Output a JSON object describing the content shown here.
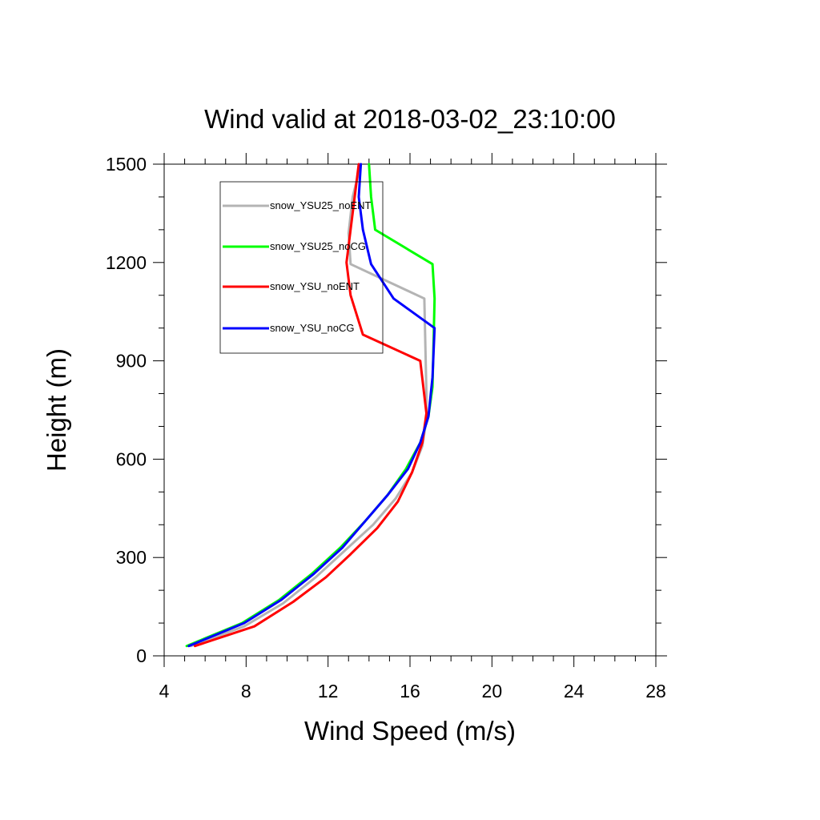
{
  "chart_data": {
    "type": "line",
    "title": "Wind valid at 2018-03-02_23:10:00",
    "xlabel": "Wind Speed (m/s)",
    "ylabel": "Height (m)",
    "xlim": [
      4,
      28
    ],
    "ylim": [
      0,
      1500
    ],
    "x_ticks": [
      "4",
      "8",
      "12",
      "16",
      "20",
      "24",
      "28"
    ],
    "y_ticks": [
      "0",
      "300",
      "600",
      "900",
      "1200",
      "1500"
    ],
    "legend_position": "top-left",
    "series": [
      {
        "name": "snow_YSU25_noENT",
        "color": "#b4b4b4",
        "x": [
          5.3,
          7.9,
          9.8,
          11.4,
          12.8,
          14.2,
          15.3,
          16.1,
          16.6,
          16.8,
          16.8,
          16.7,
          13.1,
          13.0,
          13.2,
          13.6
        ],
        "y": [
          30,
          90,
          160,
          240,
          320,
          400,
          480,
          560,
          640,
          720,
          800,
          1090,
          1195,
          1290,
          1400,
          1500
        ]
      },
      {
        "name": "snow_YSU25_noCG",
        "color": "#00ff00",
        "x": [
          5.1,
          7.8,
          9.6,
          11.2,
          12.6,
          13.8,
          14.9,
          15.8,
          16.5,
          16.9,
          17.1,
          17.2,
          17.1,
          14.3,
          14.1,
          14.0
        ],
        "y": [
          30,
          100,
          170,
          250,
          330,
          410,
          490,
          570,
          650,
          730,
          820,
          1090,
          1195,
          1300,
          1400,
          1500
        ]
      },
      {
        "name": "snow_YSU_noENT",
        "color": "#ff0000",
        "x": [
          5.5,
          8.4,
          10.3,
          11.9,
          13.1,
          14.4,
          15.4,
          16.1,
          16.6,
          16.8,
          16.5,
          13.7,
          13.1,
          12.9,
          13.1,
          13.5
        ],
        "y": [
          30,
          90,
          165,
          240,
          310,
          390,
          470,
          560,
          650,
          740,
          900,
          980,
          1100,
          1200,
          1300,
          1500
        ]
      },
      {
        "name": "snow_YSU_noCG",
        "color": "#0000ff",
        "x": [
          5.2,
          7.9,
          9.7,
          11.3,
          12.7,
          13.8,
          14.9,
          15.9,
          16.5,
          16.9,
          17.1,
          17.2,
          15.2,
          14.1,
          13.7,
          13.5,
          13.6
        ],
        "y": [
          30,
          100,
          170,
          250,
          330,
          410,
          490,
          570,
          650,
          730,
          850,
          1000,
          1090,
          1195,
          1300,
          1400,
          1500
        ]
      }
    ]
  }
}
